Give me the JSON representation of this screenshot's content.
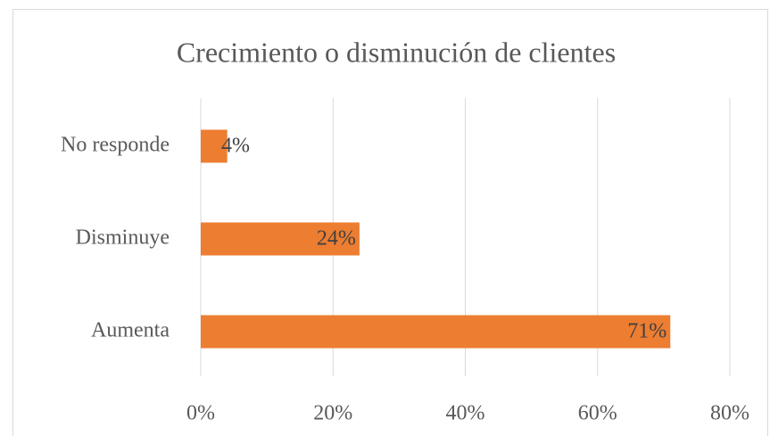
{
  "chart_data": {
    "type": "bar",
    "orientation": "horizontal",
    "title": "Crecimiento o disminución de clientes",
    "categories": [
      "No responde",
      "Disminuye",
      "Aumenta"
    ],
    "values": [
      4,
      24,
      71
    ],
    "value_labels": [
      "4%",
      "24%",
      "71%"
    ],
    "color": "#ed7d31",
    "xlim": [
      0,
      80
    ],
    "xticks": [
      {
        "value": 0,
        "label": "0%"
      },
      {
        "value": 20,
        "label": "20%"
      },
      {
        "value": 40,
        "label": "40%"
      },
      {
        "value": 60,
        "label": "60%"
      },
      {
        "value": 80,
        "label": "80%"
      }
    ],
    "grid": true
  }
}
